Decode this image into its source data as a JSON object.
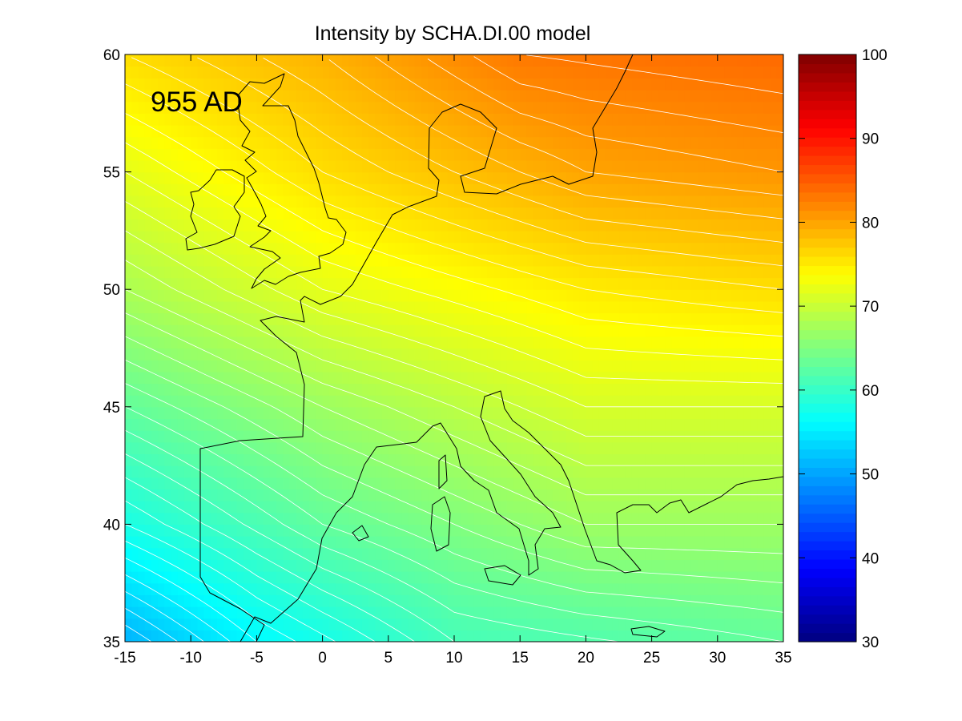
{
  "chart_data": {
    "type": "heatmap",
    "title": "Intensity by SCHA.DI.00 model",
    "annotation": "955 AD",
    "xlabel": "",
    "ylabel": "",
    "xlim": [
      -15,
      35
    ],
    "ylim": [
      35,
      60
    ],
    "x_ticks": [
      "-15",
      "-10",
      "-5",
      "0",
      "5",
      "10",
      "15",
      "20",
      "25",
      "30",
      "35"
    ],
    "y_ticks": [
      "35",
      "40",
      "45",
      "50",
      "55",
      "60"
    ],
    "colorbar": {
      "range": [
        30,
        100
      ],
      "ticks": [
        "30",
        "40",
        "50",
        "60",
        "70",
        "80",
        "90",
        "100"
      ],
      "colormap": "jet"
    },
    "contour_interval": 1,
    "intensity_samples": [
      {
        "lon": -15,
        "lat": 35,
        "value": 51
      },
      {
        "lon": -5,
        "lat": 35,
        "value": 56
      },
      {
        "lon": 10,
        "lat": 35,
        "value": 61
      },
      {
        "lon": 35,
        "lat": 35,
        "value": 63
      },
      {
        "lon": -15,
        "lat": 40,
        "value": 58
      },
      {
        "lon": 0,
        "lat": 40,
        "value": 63
      },
      {
        "lon": 20,
        "lat": 40,
        "value": 67
      },
      {
        "lon": 35,
        "lat": 40,
        "value": 67
      },
      {
        "lon": -15,
        "lat": 45,
        "value": 63
      },
      {
        "lon": 0,
        "lat": 45,
        "value": 67
      },
      {
        "lon": 20,
        "lat": 45,
        "value": 71
      },
      {
        "lon": 35,
        "lat": 45,
        "value": 71
      },
      {
        "lon": -15,
        "lat": 50,
        "value": 68
      },
      {
        "lon": 0,
        "lat": 50,
        "value": 72
      },
      {
        "lon": 20,
        "lat": 50,
        "value": 75
      },
      {
        "lon": 35,
        "lat": 50,
        "value": 76
      },
      {
        "lon": -15,
        "lat": 55,
        "value": 72
      },
      {
        "lon": 0,
        "lat": 55,
        "value": 76
      },
      {
        "lon": 20,
        "lat": 55,
        "value": 80
      },
      {
        "lon": 35,
        "lat": 55,
        "value": 81
      },
      {
        "lon": -15,
        "lat": 60,
        "value": 76
      },
      {
        "lon": 0,
        "lat": 60,
        "value": 79
      },
      {
        "lon": 15,
        "lat": 60,
        "value": 83
      },
      {
        "lon": 35,
        "lat": 60,
        "value": 84
      }
    ],
    "grid": false,
    "legend": "none"
  }
}
